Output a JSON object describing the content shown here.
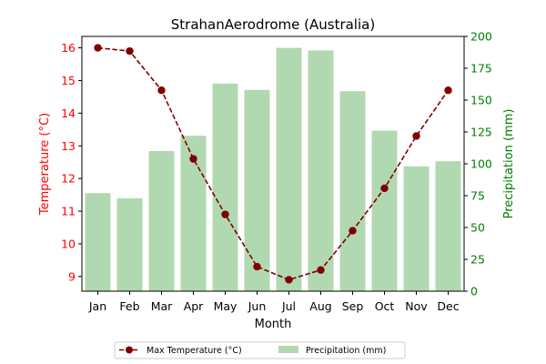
{
  "chart_data": {
    "type": "bar+line",
    "title": "StrahanAerodrome (Australia)",
    "xlabel": "Month",
    "ylabel_left": "Temperature (°C)",
    "ylabel_right": "Precipitation (mm)",
    "categories": [
      "Jan",
      "Feb",
      "Mar",
      "Apr",
      "May",
      "Jun",
      "Jul",
      "Aug",
      "Sep",
      "Oct",
      "Nov",
      "Dec"
    ],
    "ylim_left": [
      8.55,
      16.35
    ],
    "ylim_right": [
      0,
      200
    ],
    "yticks_left": [
      9,
      10,
      11,
      12,
      13,
      14,
      15,
      16
    ],
    "yticks_right": [
      0,
      25,
      50,
      75,
      100,
      125,
      150,
      175,
      200
    ],
    "grid": false,
    "legend_position": "bottom-center",
    "series": [
      {
        "name": "Max Temperature (°C)",
        "kind": "line",
        "axis": "left",
        "color": "#800000",
        "values": [
          16.0,
          15.9,
          14.7,
          12.6,
          10.9,
          9.3,
          8.9,
          9.2,
          10.4,
          11.7,
          13.3,
          14.7
        ]
      },
      {
        "name": "Precipitation (mm)",
        "kind": "bar",
        "axis": "right",
        "color": "#b1d9b1",
        "values": [
          77,
          73,
          110,
          122,
          163,
          158,
          191,
          189,
          157,
          126,
          98,
          102
        ]
      }
    ],
    "colors": {
      "left_axis": "#ff0000",
      "right_axis": "#008000"
    }
  }
}
